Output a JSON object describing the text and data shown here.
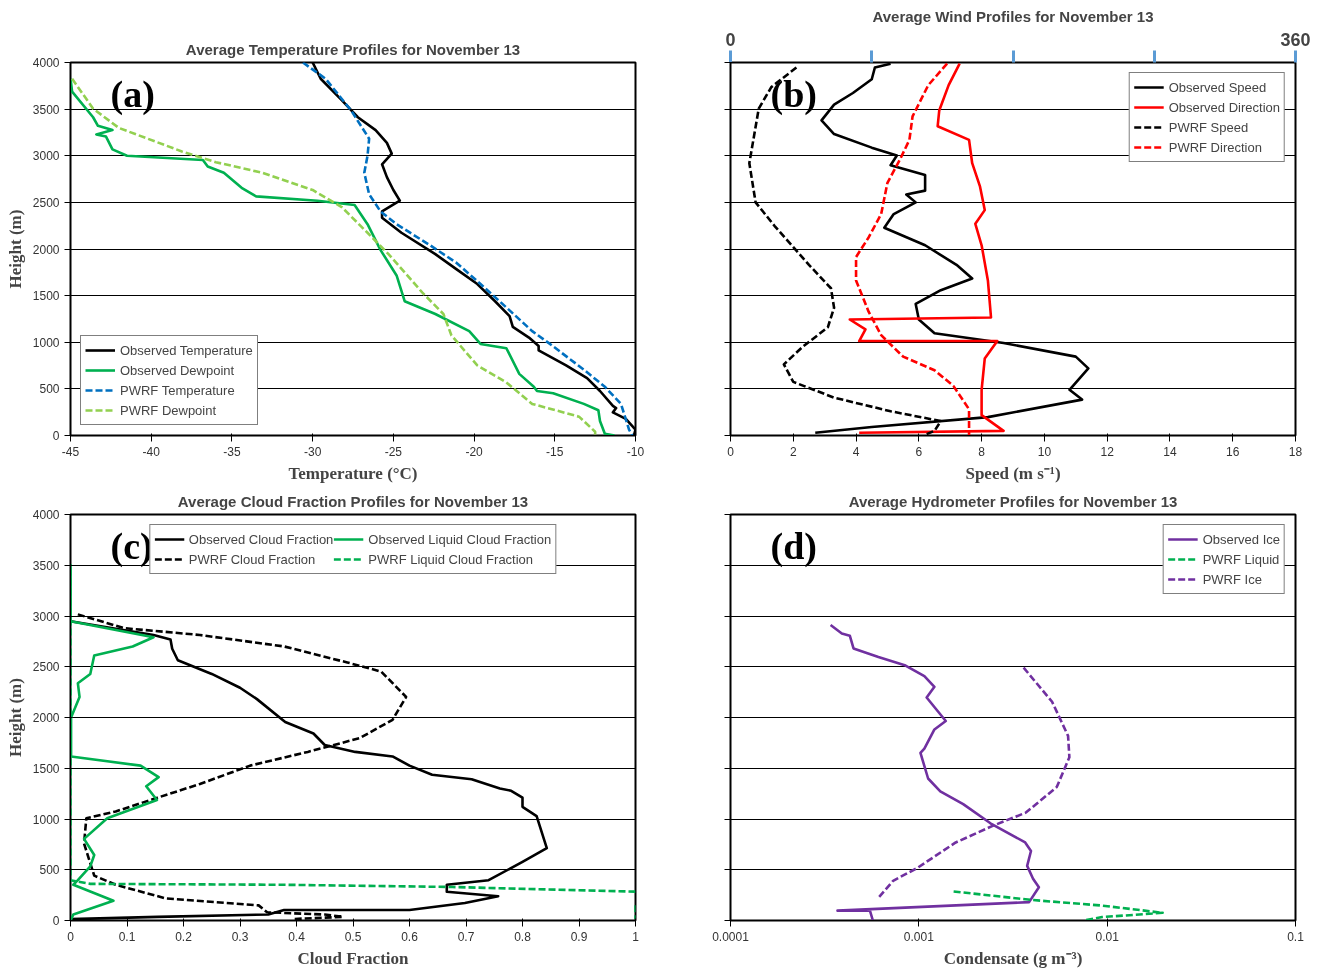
{
  "chart_data": [
    {
      "type": "line",
      "title": "Average Temperature Profiles for November 13",
      "xlabel": "Temperature (°C)",
      "ylabel": "Height (m)",
      "annotations": [
        "(a)"
      ],
      "xlim": [
        -45,
        -10
      ],
      "xticks": [
        -45,
        -40,
        -35,
        -30,
        -25,
        -20,
        -15,
        -10
      ],
      "ylim": [
        0,
        4000
      ],
      "yticks": [
        0,
        500,
        1000,
        1500,
        2000,
        2500,
        3000,
        3500,
        4000
      ],
      "grid": "y",
      "legend": "bottom left",
      "series": [
        {
          "name": "Observed Temperature",
          "color": "#000000",
          "line_style": "solid",
          "x": [
            -30.0,
            -29.5,
            -28.2,
            -27.2,
            -26.1,
            -25.4,
            -25.1,
            -25.7,
            -25.4,
            -25.0,
            -24.6,
            -25.7,
            -25.7,
            -24.5,
            -22.4,
            -21.1,
            -19.8,
            -18.7,
            -17.8,
            -17.6,
            -16.6,
            -16.0,
            -16.0,
            -14.3,
            -13.0,
            -12.2,
            -11.4,
            -11.2,
            -11.4,
            -10.6,
            -10.0,
            -10.1
          ],
          "values": [
            4000,
            3826,
            3596,
            3413,
            3275,
            3138,
            3023,
            2908,
            2771,
            2633,
            2518,
            2404,
            2335,
            2174,
            1945,
            1784,
            1624,
            1440,
            1280,
            1165,
            1050,
            959,
            913,
            752,
            615,
            477,
            317,
            294,
            248,
            179,
            64,
            0
          ]
        },
        {
          "name": "Observed Dewpoint",
          "color": "#00b050",
          "line_style": "solid",
          "x": [
            -45.0,
            -44.9,
            -43.6,
            -43.3,
            -42.4,
            -43.4,
            -42.8,
            -42.4,
            -41.5,
            -36.8,
            -36.5,
            -35.5,
            -34.4,
            -33.5,
            -29.7,
            -27.4,
            -26.6,
            -25.8,
            -24.8,
            -24.3,
            -22.4,
            -20.3,
            -19.6,
            -18.0,
            -17.2,
            -16.3,
            -16.1,
            -15.1,
            -13.2,
            -12.3,
            -12.2,
            -11.9,
            -11.3
          ],
          "values": [
            3826,
            3688,
            3413,
            3321,
            3275,
            3229,
            3206,
            3069,
            3000,
            2954,
            2885,
            2817,
            2656,
            2564,
            2518,
            2472,
            2266,
            1991,
            1716,
            1440,
            1303,
            1119,
            982,
            936,
            661,
            523,
            477,
            454,
            339,
            271,
            156,
            18,
            0
          ]
        },
        {
          "name": "PWRF Temperature",
          "color": "#0070c0",
          "line_style": "dashed",
          "x": [
            -30.6,
            -29.2,
            -27.6,
            -26.5,
            -26.6,
            -26.8,
            -26.5,
            -25.8,
            -24.8,
            -22.7,
            -21.1,
            -19.3,
            -17.7,
            -16.4,
            -15.3,
            -13.2,
            -11.9,
            -10.9,
            -10.4,
            -10.2
          ],
          "values": [
            4000,
            3826,
            3482,
            3183,
            3000,
            2817,
            2587,
            2404,
            2266,
            2037,
            1853,
            1578,
            1326,
            1119,
            982,
            706,
            523,
            339,
            64,
            0
          ]
        },
        {
          "name": "PWRF Dewpoint",
          "color": "#92d050",
          "line_style": "dashed",
          "x": [
            -44.9,
            -43.6,
            -42.0,
            -38.1,
            -36.0,
            -33.1,
            -30.0,
            -28.2,
            -26.6,
            -25.3,
            -23.2,
            -21.9,
            -21.4,
            -19.8,
            -18.0,
            -16.4,
            -13.5,
            -12.5,
            -12.5
          ],
          "values": [
            3826,
            3505,
            3298,
            3046,
            2931,
            2817,
            2633,
            2450,
            2174,
            1945,
            1532,
            1303,
            1073,
            752,
            569,
            339,
            202,
            41,
            0
          ]
        }
      ]
    },
    {
      "type": "line",
      "title": "Average Wind Profiles for November 13",
      "xlabel": "Speed (m s⁻¹)",
      "annotations": [
        "(b)"
      ],
      "xlim": [
        0,
        18
      ],
      "xticks": [
        0,
        2,
        4,
        6,
        8,
        10,
        12,
        14,
        16,
        18
      ],
      "x2lim": [
        0,
        360
      ],
      "x2ticks": [
        0,
        {
          "value": 90,
          "label": null
        },
        {
          "value": 180,
          "label": null
        },
        {
          "value": 270,
          "label": null
        },
        360
      ],
      "ylim": [
        0,
        4000
      ],
      "yticks": [
        0,
        500,
        1000,
        1500,
        2000,
        2500,
        3000,
        3500,
        4000
      ],
      "tick_labels": "x",
      "grid": "y",
      "legend": "top right",
      "series": [
        {
          "name": "Observed Speed",
          "color": "#000000",
          "line_style": "solid",
          "x": [
            5.1,
            4.6,
            4.5,
            3.9,
            3.3,
            2.9,
            3.3,
            4.5,
            5.3,
            5.1,
            6.2,
            6.2,
            5.6,
            5.9,
            5.2,
            4.9,
            6.2,
            7.2,
            7.7,
            6.7,
            5.9,
            6.0,
            6.5,
            8.7,
            11.0,
            11.4,
            10.8,
            11.2,
            8.2,
            4.5,
            2.7
          ],
          "values": [
            3987,
            3946,
            3820,
            3673,
            3548,
            3380,
            3233,
            3087,
            3003,
            2898,
            2794,
            2626,
            2584,
            2500,
            2375,
            2228,
            2040,
            1830,
            1684,
            1558,
            1411,
            1244,
            1097,
            992,
            846,
            720,
            490,
            385,
            197,
            92,
            29
          ]
        },
        {
          "name": "Observed Direction",
          "color": "#ff0000",
          "line_style": "solid",
          "axis": "x2",
          "x": [
            146,
            139,
            133,
            132,
            152,
            154,
            159,
            162,
            156,
            160,
            164,
            166,
            76,
            86,
            82,
            170,
            162,
            160,
            160,
            174,
            82
          ],
          "values": [
            3987,
            3757,
            3485,
            3317,
            3170,
            2920,
            2668,
            2417,
            2270,
            2040,
            1663,
            1265,
            1244,
            1139,
            1013,
            1013,
            825,
            490,
            218,
            50,
            29
          ]
        },
        {
          "name": "PWRF Speed",
          "color": "#000000",
          "line_style": "dashed",
          "x": [
            2.1,
            1.3,
            0.9,
            0.6,
            0.8,
            1.4,
            2.5,
            3.2,
            3.3,
            3.1,
            2.3,
            1.7,
            2.0,
            3.3,
            5.1,
            6.7,
            6.5,
            6.2
          ],
          "values": [
            3946,
            3736,
            3506,
            2920,
            2500,
            2249,
            1830,
            1579,
            1370,
            1160,
            951,
            763,
            575,
            406,
            260,
            155,
            50,
            8
          ]
        },
        {
          "name": "PWRF Direction",
          "color": "#ff0000",
          "line_style": "dashed",
          "axis": "x2",
          "x": [
            138,
            126,
            116,
            114,
            108,
            100,
            96,
            88,
            80,
            80,
            88,
            96,
            110,
            130,
            142,
            152,
            152
          ],
          "values": [
            3987,
            3757,
            3422,
            3170,
            2961,
            2710,
            2375,
            2124,
            1914,
            1663,
            1328,
            1076,
            846,
            700,
            532,
            281,
            0
          ]
        }
      ]
    },
    {
      "type": "line",
      "title": "Average Cloud Fraction Profiles for November 13",
      "xlabel": "Cloud Fraction",
      "ylabel": "Height (m)",
      "annotations": [
        "(c)"
      ],
      "xlim": [
        0,
        1
      ],
      "xticks": [
        0,
        0.1,
        0.2,
        0.3,
        0.4,
        0.5,
        0.6,
        0.7,
        0.8,
        0.9,
        1
      ],
      "ylim": [
        0,
        4000
      ],
      "yticks": [
        0,
        500,
        1000,
        1500,
        2000,
        2500,
        3000,
        3500,
        4000
      ],
      "grid": "y",
      "legend": "top",
      "series": [
        {
          "name": "Observed Cloud Fraction",
          "color": "#000000",
          "line_style": "solid",
          "x": [
            0,
            0.147,
            0.177,
            0.18,
            0.19,
            0.25,
            0.3,
            0.33,
            0.38,
            0.43,
            0.45,
            0.504,
            0.57,
            0.6,
            0.64,
            0.71,
            0.76,
            0.78,
            0.8,
            0.8,
            0.825,
            0.843,
            0.8,
            0.74,
            0.666,
            0.666,
            0.757,
            0.698,
            0.6,
            0.378,
            0.35,
            0.154,
            0
          ],
          "values": [
            2948,
            2813,
            2768,
            2677,
            2564,
            2429,
            2293,
            2181,
            1955,
            1842,
            1729,
            1661,
            1616,
            1526,
            1436,
            1391,
            1300,
            1278,
            1210,
            1120,
            1029,
            713,
            578,
            397,
            352,
            284,
            239,
            172,
            104,
            104,
            59,
            36,
            14
          ]
        },
        {
          "name": "PWRF Cloud Fraction",
          "color": "#000000",
          "line_style": "dashed",
          "x": [
            0.013,
            0.095,
            0.229,
            0.378,
            0.49,
            0.55,
            0.594,
            0.57,
            0.512,
            0.42,
            0.318,
            0.229,
            0.154,
            0.08,
            0.028,
            0.024,
            0.042,
            0.08,
            0.169,
            0.333,
            0.348,
            0.45,
            0.482,
            0.393
          ],
          "values": [
            3016,
            2880,
            2813,
            2700,
            2542,
            2452,
            2203,
            1977,
            1797,
            1661,
            1526,
            1345,
            1210,
            1074,
            1007,
            758,
            442,
            352,
            217,
            149,
            81,
            59,
            36,
            14
          ]
        },
        {
          "name": "Observed Liquid Cloud Fraction",
          "color": "#00b050",
          "line_style": "solid",
          "x": [
            0,
            0,
            0.147,
            0.11,
            0.042,
            0.035,
            0.013,
            0.016,
            0.001,
            0.001,
            0.124,
            0.156,
            0.134,
            0.153,
            0.065,
            0.024,
            0.042,
            0.035,
            0.013,
            0.005,
            0.076,
            0.005,
            0
          ],
          "values": [
            3512,
            2948,
            2790,
            2700,
            2610,
            2429,
            2338,
            2203,
            2000,
            1616,
            1526,
            1413,
            1323,
            1187,
            1007,
            804,
            645,
            533,
            397,
            352,
            194,
            59,
            0
          ]
        },
        {
          "name": "PWRF Liquid Cloud Fraction",
          "color": "#00b050",
          "line_style": "dashed",
          "x": [
            0,
            0,
            0.035,
            0.378,
            0.676,
            1,
            null,
            1,
            1
          ],
          "values": [
            3467,
            397,
            361,
            352,
            330,
            284,
            null,
            150,
            14
          ]
        }
      ]
    },
    {
      "type": "line",
      "title": "Average Hydrometer Profiles for November 13",
      "xlabel": "Condensate (g m⁻³)",
      "annotations": [
        "(d)"
      ],
      "log": "x",
      "xlim": [
        0.0001,
        0.1
      ],
      "xticks": [
        0.0001,
        0.001,
        0.01,
        0.1
      ],
      "ylim": [
        0,
        4000
      ],
      "yticks": [
        0,
        500,
        1000,
        1500,
        2000,
        2500,
        3000,
        3500,
        4000
      ],
      "tick_labels": "x",
      "grid": "y",
      "legend": "top right",
      "series": [
        {
          "name": "Observed Ice",
          "color": "#7030a0",
          "line_style": "solid",
          "x": [
            0.00034,
            0.00039,
            0.00043,
            0.00045,
            0.00061,
            0.00085,
            0.00107,
            0.00121,
            0.0011,
            0.00139,
            0.00121,
            0.00107,
            0.00102,
            0.00112,
            0.0013,
            0.00172,
            0.0024,
            0.00367,
            0.00394,
            0.00376,
            0.00404,
            0.00434,
            0.00385,
            0.00037,
            0.00055,
            0.00057
          ],
          "values": [
            2911,
            2827,
            2806,
            2680,
            2596,
            2512,
            2407,
            2302,
            2197,
            1966,
            1882,
            1693,
            1651,
            1399,
            1273,
            1147,
            958,
            769,
            685,
            538,
            412,
            328,
            181,
            97,
            97,
            0
          ]
        },
        {
          "name": "PWRF Liquid",
          "color": "#00b050",
          "line_style": "dashed",
          "x": [
            0.00153,
            0.004,
            0.0094,
            0.0197,
            0.0159,
            0.0094,
            0.0075
          ],
          "values": [
            286,
            202,
            147,
            76,
            63,
            34,
            0
          ]
        },
        {
          "name": "PWRF Ice",
          "color": "#7030a0",
          "line_style": "dashed",
          "x": [
            0.0036,
            0.0051,
            0.0062,
            0.0063,
            0.0054,
            0.0037,
            0.0025,
            0.00157,
            0.00098,
            0.00073,
            0.00061
          ],
          "values": [
            2491,
            2155,
            1819,
            1609,
            1315,
            1063,
            937,
            769,
            517,
            391,
            223
          ]
        }
      ]
    }
  ]
}
